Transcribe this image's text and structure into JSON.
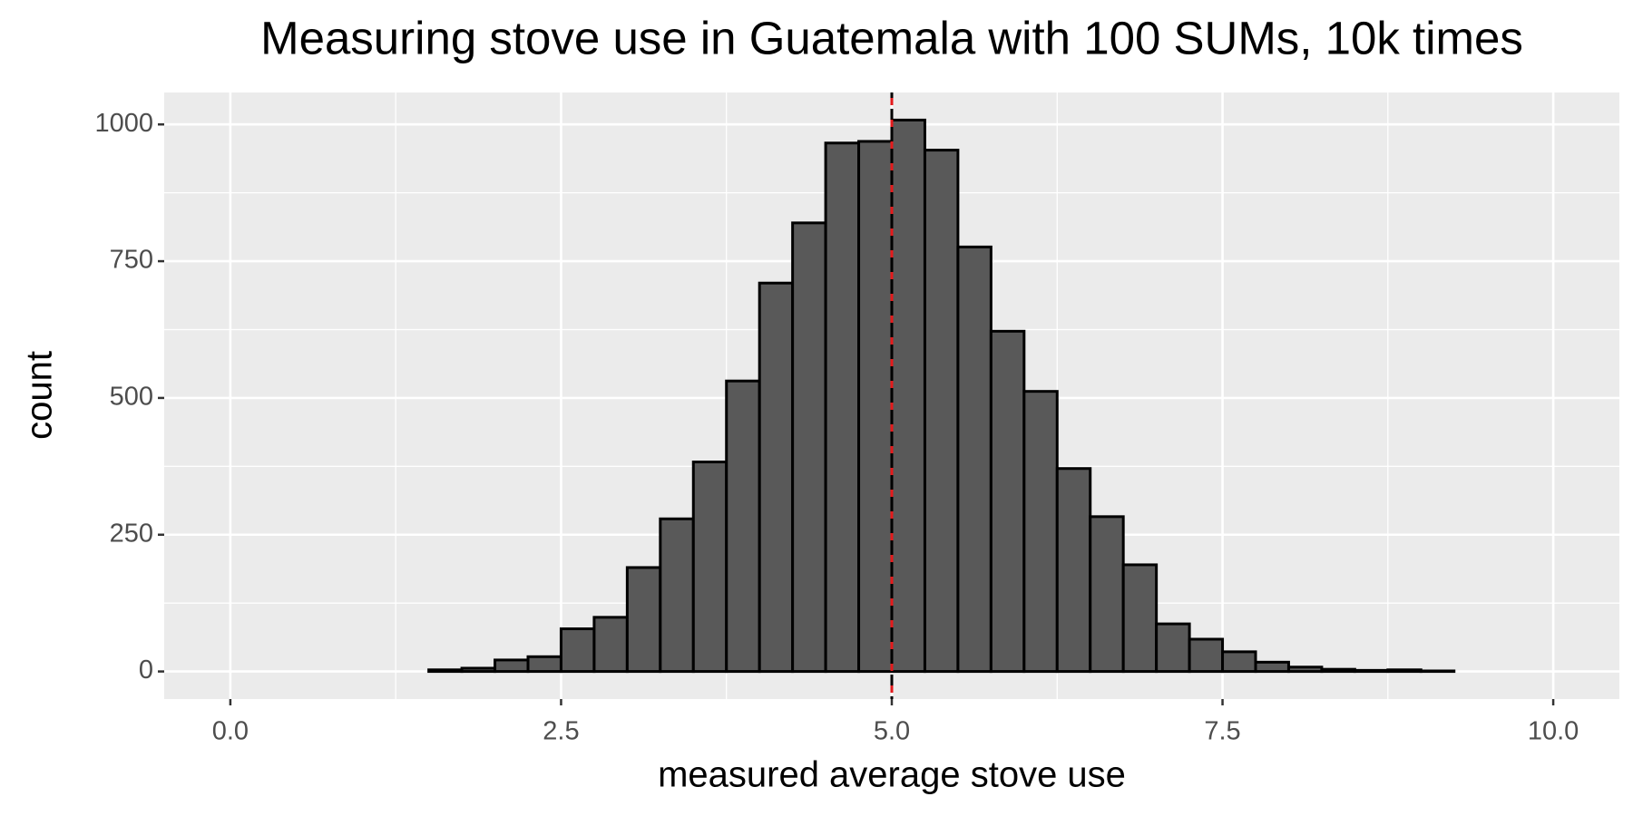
{
  "chart_data": {
    "type": "histogram",
    "title": "Measuring stove use in Guatemala with 100 SUMs, 10k times",
    "x_label": "measured average stove use",
    "y_label": "count",
    "bins": [
      0,
      0.25,
      0.5,
      0.75,
      1,
      1.25,
      1.5,
      1.75,
      2,
      2.25,
      2.5,
      2.75,
      3,
      3.25,
      3.5,
      3.75,
      4,
      4.25,
      4.5,
      4.75,
      5,
      5.25,
      5.5,
      5.75,
      6,
      6.25,
      6.5,
      6.75,
      7,
      7.25,
      7.5,
      7.75,
      8,
      8.25,
      8.5,
      8.75,
      9,
      9.25,
      9.5,
      9.75,
      10
    ],
    "values": [
      0,
      0,
      0,
      0,
      0,
      0,
      3,
      6,
      21,
      27,
      78,
      99,
      190,
      279,
      383,
      531,
      710,
      820,
      966,
      969,
      1008,
      953,
      776,
      622,
      512,
      371,
      283,
      195,
      87,
      59,
      36,
      17,
      8,
      4,
      2,
      3,
      1,
      0,
      0,
      0
    ],
    "color": "#595959",
    "edge_color": "#000000",
    "xlim": [
      -0.5,
      10.5
    ],
    "ylim": [
      -50.4,
      1058.4
    ],
    "xticks": [
      {
        "value": 0,
        "label": "0.0"
      },
      2.5,
      {
        "value": 5,
        "label": "5.0"
      },
      7.5,
      {
        "value": 10,
        "label": "10.0"
      }
    ],
    "yticks": [
      0,
      250,
      500,
      750,
      1000
    ],
    "grid": true,
    "panel_color": "#ebebeb",
    "vlines": [
      {
        "x": 5,
        "color": "#e41a1c"
      },
      {
        "x": 5,
        "color": "#000000"
      }
    ]
  }
}
